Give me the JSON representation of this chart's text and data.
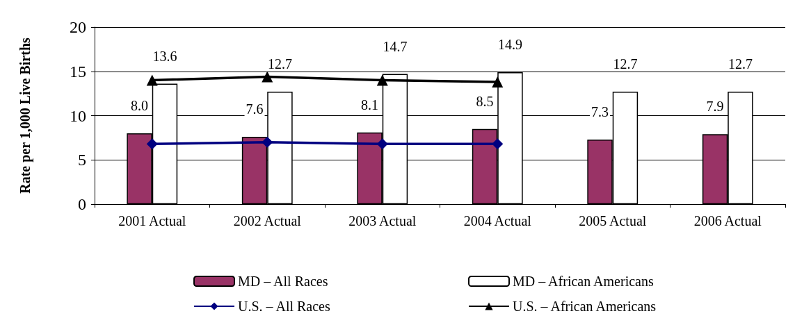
{
  "chart_data": {
    "type": "bar",
    "ylabel": "Rate per 1,000 Live Births",
    "categories": [
      "2001 Actual",
      "2002 Actual",
      "2003 Actual",
      "2004 Actual",
      "2005 Actual",
      "2006 Actual"
    ],
    "ylim": [
      0,
      20
    ],
    "yticks": [
      0,
      5,
      10,
      15,
      20
    ],
    "grid": "y",
    "legend": "bottom",
    "series": [
      {
        "name": "MD – All Races",
        "color": "#993366",
        "values": [
          8.0,
          7.6,
          8.1,
          8.5,
          7.3,
          7.9
        ],
        "value_labels": [
          "8.0",
          "7.6",
          "8.1",
          "8.5",
          "7.3",
          "7.9"
        ]
      },
      {
        "name": "MD – African Americans",
        "color": "#ffffff",
        "values": [
          13.6,
          12.7,
          14.7,
          14.9,
          12.7,
          12.7
        ],
        "value_labels": [
          "13.6",
          "12.7",
          "14.7",
          "14.9",
          "12.7",
          "12.7"
        ]
      },
      {
        "name": "U.S. – All Races",
        "type": "line",
        "color": "#000080",
        "marker": "diamond",
        "values": [
          6.8,
          7.0,
          6.8,
          6.8,
          null,
          null
        ]
      },
      {
        "name": "U.S. – African Americans",
        "type": "line",
        "color": "#000000",
        "marker": "triangle",
        "values": [
          14.0,
          14.4,
          14.0,
          13.8,
          null,
          null
        ]
      }
    ]
  }
}
